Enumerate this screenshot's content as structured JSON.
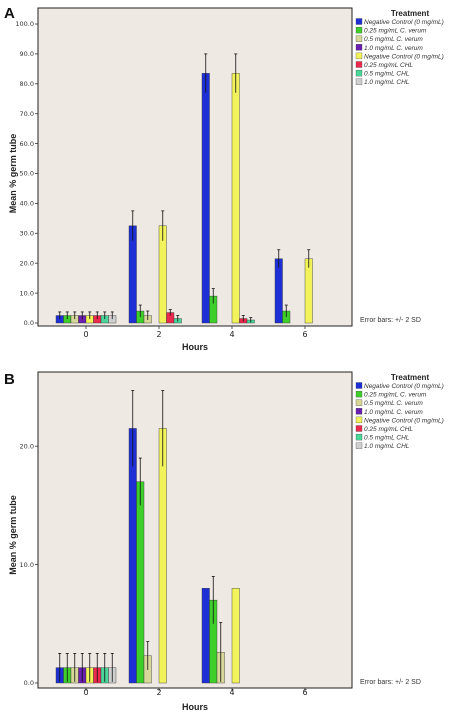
{
  "colors": [
    "#1f2fd6",
    "#3fcf2a",
    "#d8d79a",
    "#6a1fb0",
    "#f2f25a",
    "#ec2a4e",
    "#4ad89a",
    "#cfcfcf"
  ],
  "legend": {
    "title": "Treatment",
    "items": [
      "Negative Control (0 mg/mL)",
      "0.25 mg/mL C. verum",
      "0.5 mg/mL C. verum",
      "1.0 mg/mL C. verum",
      "Negative Control (0 mg/mL)",
      "0.25 mg/mL CHL",
      "0.5 mg/mL CHL",
      "1.0 mg/mL CHL"
    ]
  },
  "chart_data": [
    {
      "panel": "A",
      "type": "bar",
      "categories": [
        "0",
        "2",
        "4",
        "6"
      ],
      "xlabel": "Hours",
      "ylabel": "Mean % germ tube",
      "ylim": [
        0,
        100
      ],
      "yticks": [
        "0.0",
        "10.0",
        "20.0",
        "30.0",
        "40.0",
        "50.0",
        "60.0",
        "70.0",
        "80.0",
        "90.0",
        "100.0"
      ],
      "note": "Error bars: +/- 2 SD",
      "series": [
        {
          "name": "Negative Control (0 mg/mL)",
          "values": [
            2.5,
            32.5,
            83.5,
            21.5
          ],
          "errors": [
            1.2,
            5,
            6.5,
            3
          ]
        },
        {
          "name": "0.25 mg/mL C. verum",
          "values": [
            2.5,
            4,
            9,
            4
          ],
          "errors": [
            1.2,
            2,
            2.5,
            2
          ]
        },
        {
          "name": "0.5 mg/mL C. verum",
          "values": [
            2.5,
            2.5,
            null,
            null
          ],
          "errors": [
            1.2,
            1.5,
            null,
            null
          ]
        },
        {
          "name": "1.0 mg/mL C. verum",
          "values": [
            2.5,
            null,
            null,
            null
          ],
          "errors": [
            1.2,
            null,
            null,
            null
          ]
        },
        {
          "name": "Negative Control (0 mg/mL)",
          "values": [
            2.5,
            32.5,
            83.5,
            21.5
          ],
          "errors": [
            1.2,
            5,
            6.5,
            3
          ]
        },
        {
          "name": "0.25 mg/mL CHL",
          "values": [
            2.5,
            3.5,
            1.5,
            null
          ],
          "errors": [
            1.2,
            1,
            1,
            null
          ]
        },
        {
          "name": "0.5 mg/mL CHL",
          "values": [
            2.5,
            1.5,
            1,
            null
          ],
          "errors": [
            1.2,
            1,
            0.8,
            null
          ]
        },
        {
          "name": "1.0 mg/mL CHL",
          "values": [
            2.5,
            null,
            null,
            null
          ],
          "errors": [
            1.2,
            null,
            null,
            null
          ]
        }
      ]
    },
    {
      "panel": "B",
      "type": "bar",
      "categories": [
        "0",
        "2",
        "4",
        "6"
      ],
      "xlabel": "Hours",
      "ylabel": "Mean % germ tube",
      "ylim": [
        0,
        25
      ],
      "yticks": [
        "0.0",
        "10.0",
        "20.0"
      ],
      "note": "Error bars: +/- 2 SD",
      "series": [
        {
          "name": "Negative Control (0 mg/mL)",
          "values": [
            1.3,
            21.5,
            8,
            null
          ],
          "errors": [
            1.2,
            3.2,
            0,
            null
          ]
        },
        {
          "name": "0.25 mg/mL C. verum",
          "values": [
            1.3,
            17,
            7,
            null
          ],
          "errors": [
            1.2,
            2,
            2,
            null
          ]
        },
        {
          "name": "0.5 mg/mL C. verum",
          "values": [
            1.3,
            2.3,
            2.6,
            null
          ],
          "errors": [
            1.2,
            1.2,
            2.5,
            null
          ]
        },
        {
          "name": "1.0 mg/mL C. verum",
          "values": [
            1.3,
            null,
            null,
            null
          ],
          "errors": [
            1.2,
            null,
            null,
            null
          ]
        },
        {
          "name": "Negative Control (0 mg/mL)",
          "values": [
            1.3,
            21.5,
            8,
            null
          ],
          "errors": [
            1.2,
            3.2,
            0,
            null
          ]
        },
        {
          "name": "0.25 mg/mL CHL",
          "values": [
            1.3,
            null,
            null,
            null
          ],
          "errors": [
            1.2,
            null,
            null,
            null
          ]
        },
        {
          "name": "0.5 mg/mL CHL",
          "values": [
            1.3,
            null,
            null,
            null
          ],
          "errors": [
            1.2,
            null,
            null,
            null
          ]
        },
        {
          "name": "1.0 mg/mL CHL",
          "values": [
            1.3,
            null,
            null,
            null
          ],
          "errors": [
            1.2,
            null,
            null,
            null
          ]
        }
      ]
    }
  ]
}
